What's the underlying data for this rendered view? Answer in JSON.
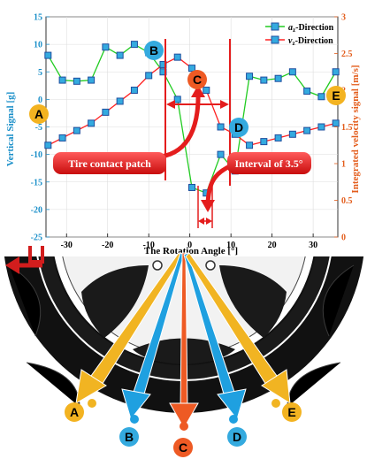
{
  "chart_data": {
    "type": "line",
    "xlabel": "The Rotation Angle [°]",
    "ylabel_left": "Vertical Signal [g]",
    "ylabel_right": "Integrated velocity signal [m/s]",
    "xlim": [
      -35,
      36
    ],
    "ylim_left": [
      -25,
      15
    ],
    "ylim_right": [
      0,
      3
    ],
    "x_ticks": [
      -30,
      -20,
      -10,
      0,
      10,
      20,
      30
    ],
    "y_left_ticks": [
      -25,
      -20,
      -15,
      -10,
      -5,
      0,
      5,
      10,
      15
    ],
    "y_right_ticks": [
      0,
      0.5,
      1,
      1.5,
      2,
      2.5,
      3
    ],
    "grid": true,
    "legend_position": "top-right",
    "series": [
      {
        "name": "a_z-Direction",
        "color": "#22cc22",
        "axis": "left",
        "x": [
          -34.5,
          -31,
          -27.5,
          -24,
          -20.5,
          -17,
          -13.5,
          -10,
          -6.5,
          -3,
          0.5,
          4,
          7.5,
          11,
          14.5,
          18,
          21.5,
          25,
          28.5,
          32,
          35.5
        ],
        "y": [
          8,
          3.5,
          3.3,
          3.5,
          9.5,
          8,
          10,
          8.5,
          5,
          0,
          -16,
          -17,
          -10,
          -13,
          4.2,
          3.5,
          3.8,
          5,
          1.5,
          0.5,
          5
        ]
      },
      {
        "name": "v_z-Direction",
        "color": "#ff2020",
        "axis": "right",
        "x": [
          -34.5,
          -31,
          -27.5,
          -24,
          -20.5,
          -17,
          -13.5,
          -10,
          -6.5,
          -3,
          0.5,
          4,
          7.5,
          11,
          14.5,
          18,
          21.5,
          25,
          28.5,
          32,
          35.5
        ],
        "y": [
          1.25,
          1.35,
          1.45,
          1.55,
          1.7,
          1.85,
          2.0,
          2.2,
          2.35,
          2.45,
          2.3,
          2.0,
          1.5,
          1.4,
          1.25,
          1.3,
          1.35,
          1.4,
          1.45,
          1.5,
          1.55
        ]
      }
    ],
    "annotations": {
      "contact_patch": "Tire contact patch",
      "interval": "Interval of 3.5°"
    },
    "point_labels": [
      "A",
      "B",
      "C",
      "D",
      "E"
    ]
  },
  "legend": {
    "az_symbol": "a",
    "az_sub": "z",
    "az_text": "-Direction",
    "vz_symbol": "v",
    "vz_sub": "z",
    "vz_text": "-Direction"
  },
  "tire": {
    "direction_label": "u",
    "point_labels": [
      "A",
      "B",
      "C",
      "D",
      "E"
    ]
  },
  "colors": {
    "left_axis": "#1a8fc9",
    "right_axis": "#e35d1c",
    "arrow_red": "#e41d1d",
    "label_orange": "#f3b321",
    "label_blue": "#34aadf",
    "label_red": "#ee5a24",
    "arrow_gold": "#f1b422",
    "arrow_blue": "#1fa0e0"
  }
}
